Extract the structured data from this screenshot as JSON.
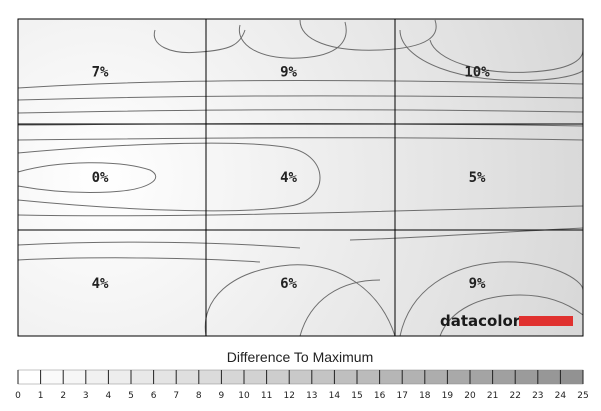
{
  "chart_data": {
    "type": "heatmap",
    "title": "Difference To Maximum",
    "grid": {
      "rows": 3,
      "cols": 3
    },
    "cells": [
      [
        "7%",
        "9%",
        "10%"
      ],
      [
        "0%",
        "4%",
        "5%"
      ],
      [
        "4%",
        "6%",
        "9%"
      ]
    ],
    "values": [
      [
        7,
        9,
        10
      ],
      [
        0,
        4,
        5
      ],
      [
        4,
        6,
        9
      ]
    ],
    "scale": {
      "min": 0,
      "max": 25,
      "ticks": [
        "0",
        "1",
        "2",
        "3",
        "4",
        "5",
        "6",
        "7",
        "8",
        "9",
        "10",
        "11",
        "12",
        "13",
        "14",
        "15",
        "16",
        "17",
        "18",
        "19",
        "20",
        "21",
        "22",
        "23",
        "24",
        "25"
      ]
    },
    "legend_position": "bottom",
    "logo": "datacolor"
  },
  "colors": {
    "grid_line": "#000000",
    "contour": "#6e6e6e",
    "logo_bar": "#e0312f"
  }
}
